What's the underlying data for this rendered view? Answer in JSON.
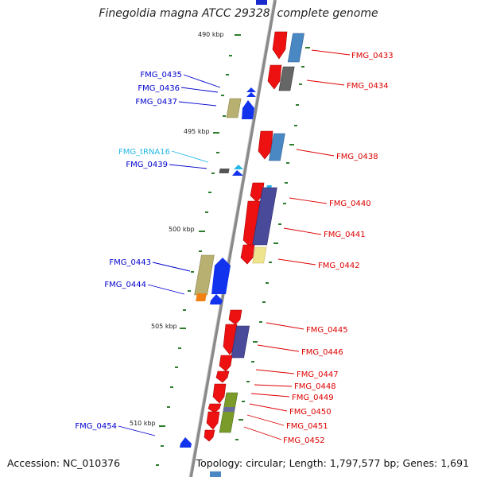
{
  "title": "Finegoldia magna ATCC 29328, complete genome",
  "accession": "Accession: NC_010376",
  "summary": "Topology: circular; Length: 1,797,577 bp; Genes: 1,691",
  "colors": {
    "backbone": "#8a8a8a",
    "tick": "#2e7d2e",
    "forward_label": "#0000cc",
    "reverse_label": "#dd0000",
    "rna_label": "#22b8e8"
  },
  "scale_labels": [
    {
      "id": "kbp490",
      "label": "490 kbp"
    },
    {
      "id": "kbp495",
      "label": "495 kbp"
    },
    {
      "id": "kbp500",
      "label": "500 kbp"
    },
    {
      "id": "kbp505",
      "label": "505 kbp"
    },
    {
      "id": "kbp510",
      "label": "510 kbp"
    }
  ],
  "genes_reverse": [
    {
      "id": "g0433",
      "label": "FMG_0433"
    },
    {
      "id": "g0434",
      "label": "FMG_0434"
    },
    {
      "id": "g0438",
      "label": "FMG_0438"
    },
    {
      "id": "g0440",
      "label": "FMG_0440"
    },
    {
      "id": "g0441",
      "label": "FMG_0441"
    },
    {
      "id": "g0442",
      "label": "FMG_0442"
    },
    {
      "id": "g0445",
      "label": "FMG_0445"
    },
    {
      "id": "g0446",
      "label": "FMG_0446"
    },
    {
      "id": "g0447",
      "label": "FMG_0447"
    },
    {
      "id": "g0448",
      "label": "FMG_0448"
    },
    {
      "id": "g0449",
      "label": "FMG_0449"
    },
    {
      "id": "g0450",
      "label": "FMG_0450"
    },
    {
      "id": "g0451",
      "label": "FMG_0451"
    },
    {
      "id": "g0452",
      "label": "FMG_0452"
    }
  ],
  "genes_forward": [
    {
      "id": "g0435",
      "label": "FMG_0435"
    },
    {
      "id": "g0436",
      "label": "FMG_0436"
    },
    {
      "id": "g0437",
      "label": "FMG_0437"
    },
    {
      "id": "trna16",
      "label": "FMG_tRNA16"
    },
    {
      "id": "g0439",
      "label": "FMG_0439"
    },
    {
      "id": "g0443",
      "label": "FMG_0443"
    },
    {
      "id": "g0444",
      "label": "FMG_0444"
    },
    {
      "id": "g0454",
      "label": "FMG_0454"
    }
  ]
}
